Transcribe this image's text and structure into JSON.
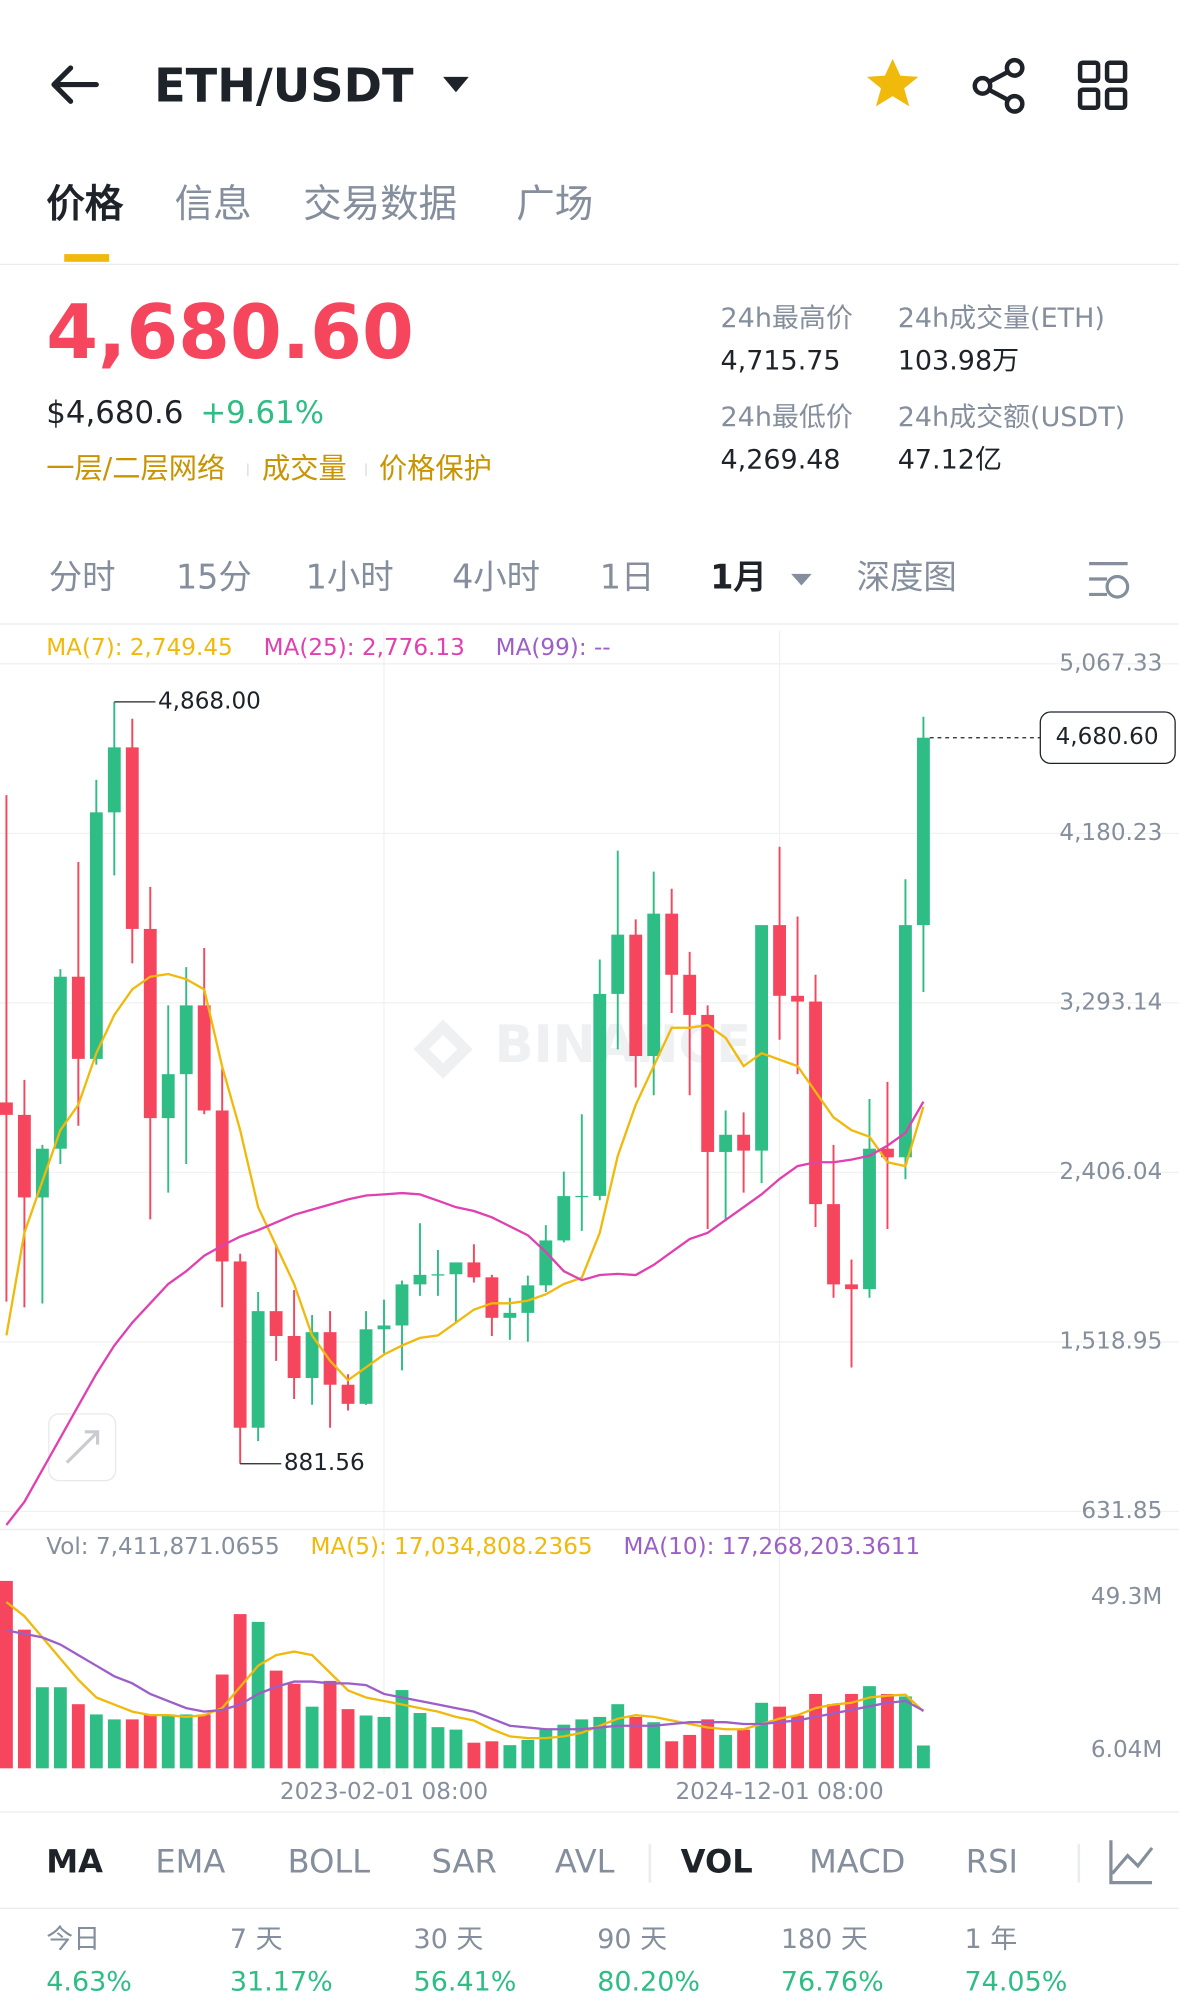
{
  "header": {
    "pair": "ETH/USDT"
  },
  "tabs": [
    "价格",
    "信息",
    "交易数据",
    "广场"
  ],
  "price": {
    "last": "4,680.60",
    "usd": "$4,680.6",
    "change": "+9.61%",
    "tags": [
      "一层/二层网络",
      "成交量",
      "价格保护"
    ]
  },
  "stats": [
    {
      "label": "24h最高价",
      "value": "4,715.75"
    },
    {
      "label": "24h成交量(ETH)",
      "value": "103.98万"
    },
    {
      "label": "24h最低价",
      "value": "4,269.48"
    },
    {
      "label": "24h成交额(USDT)",
      "value": "47.12亿"
    }
  ],
  "intervals": [
    "分时",
    "15分",
    "1小时",
    "4小时",
    "1日",
    "1月",
    "深度图"
  ],
  "chart_data": {
    "type": "candlestick",
    "watermark": "BINANCE",
    "categories": [
      null,
      null,
      null,
      null,
      null,
      null,
      null,
      null,
      null,
      null,
      null,
      null,
      null,
      null,
      null,
      null,
      null,
      null,
      null,
      null,
      null,
      "2023-02-01 08:00",
      null,
      null,
      null,
      null,
      null,
      null,
      null,
      null,
      null,
      null,
      null,
      null,
      null,
      null,
      null,
      null,
      null,
      null,
      null,
      null,
      null,
      "2024-12-01 08:00",
      null,
      null,
      null,
      null,
      null,
      null,
      null,
      null
    ],
    "open": [
      2772,
      2707,
      2275,
      2530,
      3430,
      3000,
      4290,
      4630,
      3680,
      2690,
      2920,
      3280,
      2730,
      1940,
      1070,
      1680,
      1550,
      1330,
      1570,
      1295,
      1195,
      1585,
      1605,
      1820,
      1870,
      1873,
      1935,
      1857,
      1645,
      1671,
      1815,
      2050,
      2282,
      2283,
      3340,
      3650,
      3015,
      3760,
      3440,
      3230,
      2513,
      2603,
      2520,
      3700,
      3330,
      3300,
      2240,
      1820,
      1795,
      2530,
      2485,
      3700
    ],
    "high": [
      4380,
      2890,
      2550,
      3470,
      4030,
      4460,
      4868,
      4780,
      3900,
      3280,
      3480,
      3580,
      2950,
      1980,
      1780,
      2030,
      1790,
      1660,
      1680,
      1350,
      1680,
      1740,
      1840,
      2140,
      2000,
      1930,
      2030,
      1870,
      1750,
      1866,
      2130,
      2410,
      2710,
      3520,
      4090,
      3730,
      3980,
      3890,
      3560,
      3280,
      2730,
      2720,
      3680,
      4110,
      3745,
      3440,
      2550,
      1950,
      2790,
      2880,
      3940,
      4790
    ],
    "low": [
      1730,
      1700,
      1720,
      2450,
      2650,
      2970,
      3960,
      3500,
      2160,
      2300,
      2450,
      2710,
      1700,
      881.56,
      1000,
      1420,
      1220,
      1190,
      1070,
      1160,
      1190,
      1460,
      1370,
      1760,
      1760,
      1620,
      1830,
      1550,
      1530,
      1520,
      1780,
      2040,
      2100,
      2260,
      3050,
      2850,
      2810,
      3240,
      2810,
      2110,
      2150,
      2300,
      2350,
      3100,
      2920,
      2120,
      1750,
      1385,
      1750,
      2110,
      2370,
      3350
    ],
    "close": [
      2707,
      2275,
      2530,
      3430,
      3000,
      4290,
      4630,
      3680,
      2690,
      2920,
      3280,
      2730,
      1940,
      1070,
      1680,
      1550,
      1330,
      1570,
      1295,
      1195,
      1585,
      1605,
      1820,
      1870,
      1873,
      1935,
      1857,
      1645,
      1671,
      1815,
      2050,
      2282,
      2283,
      3340,
      3650,
      3015,
      3760,
      3440,
      3230,
      2513,
      2603,
      2520,
      3700,
      3330,
      3300,
      2240,
      1820,
      1795,
      2530,
      2485,
      3700,
      4680.6
    ],
    "up_color": "#2ebd85",
    "down_color": "#f6465d",
    "ylim": [
      631.85,
      5067.33
    ],
    "yticks": [
      {
        "value": 631.85,
        "label": "631.85"
      },
      {
        "value": 1518.95,
        "label": "1,518.95"
      },
      {
        "value": 2406.04,
        "label": "2,406.04"
      },
      {
        "value": 3293.14,
        "label": "3,293.14"
      },
      {
        "value": 4180.23,
        "label": "4,180.23"
      },
      {
        "value": 5067.33,
        "label": "5,067.33"
      }
    ],
    "grid": true,
    "last_price": {
      "value": 4680.6,
      "label": "4,680.60"
    },
    "high_label": {
      "value": 4868,
      "label": "4,868.00"
    },
    "low_label": {
      "value": 881.56,
      "label": "881.56"
    },
    "series": [
      {
        "name": "MA(7)",
        "label": "MA(7): 2,749.45",
        "color": "#f0b90b",
        "values": [
          1553,
          2090,
          2360,
          2627,
          2760,
          3030,
          3230,
          3364,
          3430,
          3444,
          3417,
          3364,
          2960,
          2627,
          2224,
          2023,
          1822,
          1553,
          1420,
          1319,
          1386,
          1453,
          1500,
          1540,
          1553,
          1620,
          1688,
          1721,
          1721,
          1735,
          1768,
          1822,
          1855,
          2090,
          2492,
          2760,
          2962,
          3163,
          3163,
          3177,
          3110,
          2962,
          3030,
          2996,
          2962,
          2828,
          2694,
          2627,
          2593,
          2459,
          2439,
          2749.45
        ]
      },
      {
        "name": "MA(25)",
        "label": "MA(25): 2,776.13",
        "color": "#e040b0",
        "values": [
          561,
          682,
          850,
          1017,
          1185,
          1352,
          1500,
          1620,
          1721,
          1822,
          1889,
          1970,
          2023,
          2070,
          2104,
          2144,
          2184,
          2211,
          2238,
          2265,
          2285,
          2291,
          2298,
          2291,
          2258,
          2224,
          2204,
          2171,
          2124,
          2077,
          1990,
          1889,
          1842,
          1869,
          1875,
          1869,
          1922,
          1990,
          2057,
          2090,
          2157,
          2224,
          2291,
          2372,
          2439,
          2459,
          2459,
          2473,
          2493,
          2546,
          2613,
          2776.13
        ]
      },
      {
        "name": "MA(99)",
        "label": "MA(99): --",
        "color": "#9c5fc7"
      }
    ],
    "volume": {
      "label": "Vol: 7,411,871.0655",
      "values": [
        54000000,
        40200000,
        23900000,
        23900000,
        19100000,
        16200000,
        14800000,
        14800000,
        16200000,
        16200000,
        16200000,
        16200000,
        27500000,
        44600000,
        42400000,
        28600000,
        24900000,
        18400000,
        25700000,
        17700000,
        15900000,
        15500000,
        23100000,
        16600000,
        12600000,
        11900000,
        8200000,
        8600000,
        7500000,
        9000000,
        11900000,
        13300000,
        14800000,
        15500000,
        19100000,
        15500000,
        14000000,
        8600000,
        10400000,
        14800000,
        10400000,
        11900000,
        19500000,
        18400000,
        15900000,
        22000000,
        19100000,
        22000000,
        24200000,
        22000000,
        21300000,
        7411871.0655
      ],
      "ylim": [
        950000,
        59480000
      ],
      "yticks": [
        {
          "value": 6040000,
          "label": "6.04M"
        },
        {
          "value": 49300000,
          "label": "49.3M"
        }
      ],
      "series": [
        {
          "name": "MA(5)",
          "label": "MA(5): 17,034,808.2365",
          "color": "#f0b90b",
          "values": [
            48000000,
            44000000,
            38000000,
            32000000,
            26000000,
            21000000,
            19000000,
            17000000,
            16000000,
            16000000,
            15500000,
            16000000,
            18000000,
            24000000,
            30000000,
            33000000,
            34000000,
            33000000,
            28000000,
            23000000,
            21000000,
            20000000,
            19000000,
            18000000,
            17000000,
            15500000,
            14500000,
            12000000,
            10000000,
            9500000,
            9500000,
            10000000,
            11000000,
            13000000,
            15000000,
            16000000,
            15500000,
            14500000,
            13500000,
            12500000,
            12000000,
            12000000,
            13500000,
            15000000,
            16000000,
            18000000,
            19000000,
            19500000,
            21000000,
            21500000,
            21800000,
            17034808.2365
          ]
        },
        {
          "name": "MA(10)",
          "label": "MA(10): 17,268,203.3611",
          "color": "#9c5fc7",
          "values": [
            40000000,
            39000000,
            38000000,
            36000000,
            33000000,
            30000000,
            27000000,
            25000000,
            22000000,
            20000000,
            18000000,
            17000000,
            17500000,
            19000000,
            22000000,
            24000000,
            25500000,
            25500000,
            25000000,
            25000000,
            24500000,
            22000000,
            21000000,
            20000000,
            19000000,
            18000000,
            17000000,
            15000000,
            13000000,
            12500000,
            12000000,
            12000000,
            12000000,
            12500000,
            13000000,
            13000000,
            13000000,
            13500000,
            14000000,
            14000000,
            14000000,
            13500000,
            13500000,
            14000000,
            14500000,
            15500000,
            16500000,
            17500000,
            18500000,
            19500000,
            20000000,
            17268203.3611
          ]
        }
      ]
    }
  },
  "indicators": [
    "MA",
    "EMA",
    "BOLL",
    "SAR",
    "AVL",
    "VOL",
    "MACD",
    "RSI"
  ],
  "performance": [
    {
      "period": "今日",
      "value": "4.63%"
    },
    {
      "period": "7 天",
      "value": "31.17%"
    },
    {
      "period": "30 天",
      "value": "56.41%"
    },
    {
      "period": "90 天",
      "value": "80.20%"
    },
    {
      "period": "180 天",
      "value": "76.76%"
    },
    {
      "period": "1 年",
      "value": "74.05%"
    }
  ]
}
